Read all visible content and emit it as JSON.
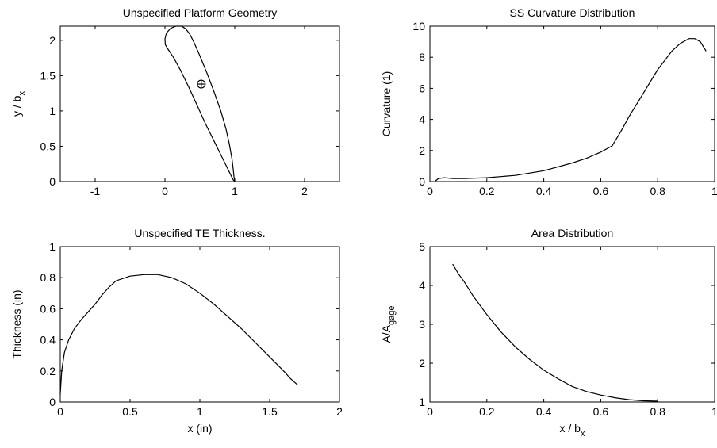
{
  "figure": {
    "background": "#ffffff",
    "line_color": "#000000"
  },
  "chart_data": [
    {
      "id": "platform",
      "type": "line",
      "title": "Unspecified Platform Geometry",
      "xlabel": "",
      "ylabel": "y / b",
      "ylabel_sub": "x",
      "xlim": [
        -1.5,
        2.5
      ],
      "ylim": [
        0,
        2.2
      ],
      "xticks": [
        -1,
        0,
        1,
        2
      ],
      "yticks": [
        0,
        0.5,
        1,
        1.5,
        2
      ],
      "xtick_labels": [
        "-1",
        "0",
        "1",
        "2"
      ],
      "ytick_labels": [
        "0",
        "0.5",
        "1",
        "1.5",
        "2"
      ],
      "grid": false,
      "series": [
        {
          "x": [
            0.98,
            0.94,
            0.88,
            0.8,
            0.7,
            0.58,
            0.46,
            0.34,
            0.22,
            0.12,
            0.04,
            0.005,
            0.0,
            0.02,
            0.08,
            0.16,
            0.24,
            0.3,
            0.36,
            0.42,
            0.5,
            0.6,
            0.7,
            0.8,
            0.87,
            0.92,
            0.96,
            0.98,
            0.99,
            1.0,
            0.98
          ],
          "y": [
            0.02,
            0.1,
            0.22,
            0.38,
            0.58,
            0.82,
            1.08,
            1.34,
            1.58,
            1.76,
            1.88,
            1.94,
            2.02,
            2.1,
            2.17,
            2.2,
            2.2,
            2.16,
            2.08,
            1.96,
            1.78,
            1.54,
            1.28,
            1.0,
            0.76,
            0.54,
            0.32,
            0.16,
            0.06,
            0.01,
            0.02
          ]
        }
      ],
      "markers": [
        {
          "symbol": "circle-plus",
          "x": 0.52,
          "y": 1.38
        }
      ]
    },
    {
      "id": "curvature",
      "type": "line",
      "title": "SS Curvature Distribution",
      "xlabel": "",
      "ylabel": "Curvature (1)",
      "xlim": [
        0,
        1
      ],
      "ylim": [
        0,
        10
      ],
      "xticks": [
        0,
        0.2,
        0.4,
        0.6,
        0.8,
        1
      ],
      "yticks": [
        0,
        2,
        4,
        6,
        8,
        10
      ],
      "xtick_labels": [
        "0",
        "0.2",
        "0.4",
        "0.6",
        "0.8",
        "1"
      ],
      "ytick_labels": [
        "0",
        "2",
        "4",
        "6",
        "8",
        "10"
      ],
      "grid": false,
      "series": [
        {
          "x": [
            0.02,
            0.03,
            0.05,
            0.08,
            0.12,
            0.2,
            0.3,
            0.4,
            0.5,
            0.55,
            0.6,
            0.64,
            0.67,
            0.7,
            0.75,
            0.8,
            0.85,
            0.88,
            0.91,
            0.93,
            0.95,
            0.97
          ],
          "y": [
            0.05,
            0.2,
            0.25,
            0.2,
            0.2,
            0.25,
            0.4,
            0.7,
            1.2,
            1.5,
            1.9,
            2.3,
            3.2,
            4.2,
            5.7,
            7.2,
            8.4,
            8.9,
            9.2,
            9.2,
            9.0,
            8.4
          ]
        }
      ]
    },
    {
      "id": "thickness",
      "type": "line",
      "title": "Unspecified TE Thickness.",
      "xlabel": "x (in)",
      "ylabel": "Thickness (in)",
      "xlim": [
        0,
        2
      ],
      "ylim": [
        0,
        1
      ],
      "xticks": [
        0,
        0.5,
        1,
        1.5,
        2
      ],
      "yticks": [
        0,
        0.2,
        0.4,
        0.6,
        0.8,
        1
      ],
      "xtick_labels": [
        "0",
        "0.5",
        "1",
        "1.5",
        "2"
      ],
      "ytick_labels": [
        "0",
        "0.2",
        "0.4",
        "0.6",
        "0.8",
        "1"
      ],
      "grid": false,
      "series": [
        {
          "x": [
            0.0,
            0.01,
            0.03,
            0.06,
            0.1,
            0.15,
            0.2,
            0.25,
            0.3,
            0.35,
            0.4,
            0.5,
            0.6,
            0.7,
            0.8,
            0.9,
            1.0,
            1.1,
            1.2,
            1.3,
            1.4,
            1.5,
            1.6,
            1.65,
            1.7
          ],
          "y": [
            0.05,
            0.2,
            0.32,
            0.4,
            0.47,
            0.53,
            0.58,
            0.63,
            0.69,
            0.74,
            0.78,
            0.81,
            0.82,
            0.82,
            0.8,
            0.76,
            0.7,
            0.63,
            0.55,
            0.47,
            0.38,
            0.29,
            0.2,
            0.15,
            0.11
          ]
        }
      ]
    },
    {
      "id": "area",
      "type": "line",
      "title": "Area Distribution",
      "xlabel": "x / b",
      "xlabel_sub": "x",
      "ylabel": "A/A",
      "ylabel_sub": "gage",
      "xlim": [
        0,
        1
      ],
      "ylim": [
        1,
        5
      ],
      "xticks": [
        0,
        0.2,
        0.4,
        0.6,
        0.8,
        1
      ],
      "yticks": [
        1,
        2,
        3,
        4,
        5
      ],
      "xtick_labels": [
        "0",
        "0.2",
        "0.4",
        "0.6",
        "0.8",
        "1"
      ],
      "ytick_labels": [
        "1",
        "2",
        "3",
        "4",
        "5"
      ],
      "grid": false,
      "series": [
        {
          "x": [
            0.08,
            0.1,
            0.12,
            0.15,
            0.2,
            0.25,
            0.3,
            0.35,
            0.4,
            0.45,
            0.5,
            0.55,
            0.6,
            0.65,
            0.7,
            0.75,
            0.8
          ],
          "y": [
            4.55,
            4.3,
            4.1,
            3.75,
            3.25,
            2.8,
            2.42,
            2.1,
            1.82,
            1.6,
            1.4,
            1.27,
            1.18,
            1.11,
            1.06,
            1.03,
            1.02
          ]
        }
      ]
    }
  ]
}
